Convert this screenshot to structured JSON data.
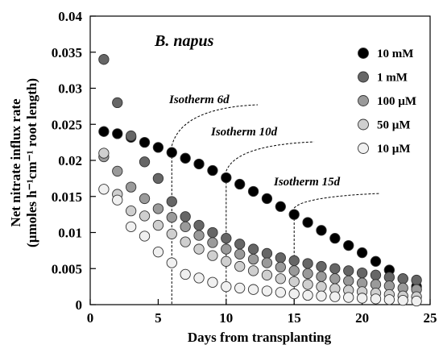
{
  "chart_data": {
    "type": "scatter",
    "title": "B. napus",
    "xlabel": "Days from transplanting",
    "ylabel_line1": "Net nitrate influx rate",
    "ylabel_line2": "(µmoles h⁻¹cm⁻¹ root length)",
    "xlim": [
      0,
      25
    ],
    "ylim": [
      0,
      0.04
    ],
    "x_ticks": [
      "0",
      "5",
      "10",
      "15",
      "20",
      "25"
    ],
    "y_ticks": [
      "0",
      "0.005",
      "0.01",
      "0.015",
      "0.02",
      "0.025",
      "0.03",
      "0.035",
      "0.04"
    ],
    "grid": false,
    "legend_position": "right",
    "series": [
      {
        "name": "10 mM",
        "color": "#000000",
        "x": [
          1,
          2,
          3,
          4,
          5,
          6,
          7,
          8,
          9,
          10,
          11,
          12,
          13,
          14,
          15,
          16,
          17,
          18,
          19,
          20,
          21,
          22,
          23,
          24
        ],
        "y": [
          0.024,
          0.0237,
          0.0232,
          0.0225,
          0.0218,
          0.0211,
          0.0203,
          0.0195,
          0.0186,
          0.0176,
          0.0167,
          0.0157,
          0.0147,
          0.0136,
          0.0125,
          0.0114,
          0.0103,
          0.0092,
          0.0082,
          0.0072,
          0.006,
          0.0048,
          0.0036,
          0.0025
        ]
      },
      {
        "name": "1 mM",
        "color": "#666666",
        "x": [
          1,
          2,
          3,
          4,
          5,
          6,
          7,
          8,
          9,
          10,
          11,
          12,
          13,
          14,
          15,
          16,
          17,
          18,
          19,
          20,
          21,
          22,
          23,
          24
        ],
        "y": [
          0.034,
          0.028,
          0.0234,
          0.0198,
          0.0175,
          0.0143,
          0.0122,
          0.011,
          0.01,
          0.0092,
          0.0084,
          0.0077,
          0.0071,
          0.0065,
          0.0061,
          0.0057,
          0.0053,
          0.005,
          0.0047,
          0.0044,
          0.0041,
          0.0038,
          0.0036,
          0.0034
        ]
      },
      {
        "name": "100 µM",
        "color": "#9a9a9a",
        "x": [
          1,
          2,
          3,
          4,
          5,
          6,
          7,
          8,
          9,
          10,
          11,
          12,
          13,
          14,
          15,
          16,
          17,
          18,
          19,
          20,
          21,
          22,
          23,
          24
        ],
        "y": [
          0.0205,
          0.0185,
          0.0163,
          0.0147,
          0.0133,
          0.0121,
          0.0108,
          0.0096,
          0.0086,
          0.0077,
          0.007,
          0.0063,
          0.0058,
          0.0052,
          0.0047,
          0.0043,
          0.0039,
          0.0036,
          0.0033,
          0.003,
          0.0028,
          0.0026,
          0.0023,
          0.0021
        ]
      },
      {
        "name": "50 µM",
        "color": "#cfcfcf",
        "x": [
          1,
          2,
          3,
          4,
          5,
          6,
          7,
          8,
          9,
          10,
          11,
          12,
          13,
          14,
          15,
          16,
          17,
          18,
          19,
          20,
          21,
          22,
          23,
          24
        ],
        "y": [
          0.021,
          0.0153,
          0.013,
          0.0123,
          0.011,
          0.0098,
          0.0087,
          0.0077,
          0.0068,
          0.006,
          0.0053,
          0.0047,
          0.0041,
          0.0036,
          0.0032,
          0.0028,
          0.0025,
          0.0022,
          0.002,
          0.0018,
          0.0016,
          0.0014,
          0.0012,
          0.0011
        ]
      },
      {
        "name": "10 µM",
        "color": "#f0f0f0",
        "x": [
          1,
          2,
          3,
          4,
          5,
          6,
          7,
          8,
          9,
          10,
          11,
          12,
          13,
          14,
          15,
          16,
          17,
          18,
          19,
          20,
          21,
          22,
          23,
          24
        ],
        "y": [
          0.016,
          0.0145,
          0.0108,
          0.0095,
          0.0073,
          0.0058,
          0.0042,
          0.0037,
          0.0031,
          0.0025,
          0.0023,
          0.0021,
          0.0019,
          0.0017,
          0.0015,
          0.0013,
          0.0012,
          0.0011,
          0.001,
          0.0009,
          0.0008,
          0.0007,
          0.0006,
          0.0005
        ]
      }
    ],
    "isotherms": [
      {
        "label": "Isotherm 6d",
        "x": 6
      },
      {
        "label": "Isotherm 10d",
        "x": 10
      },
      {
        "label": "Isotherm 15d",
        "x": 15
      }
    ]
  }
}
